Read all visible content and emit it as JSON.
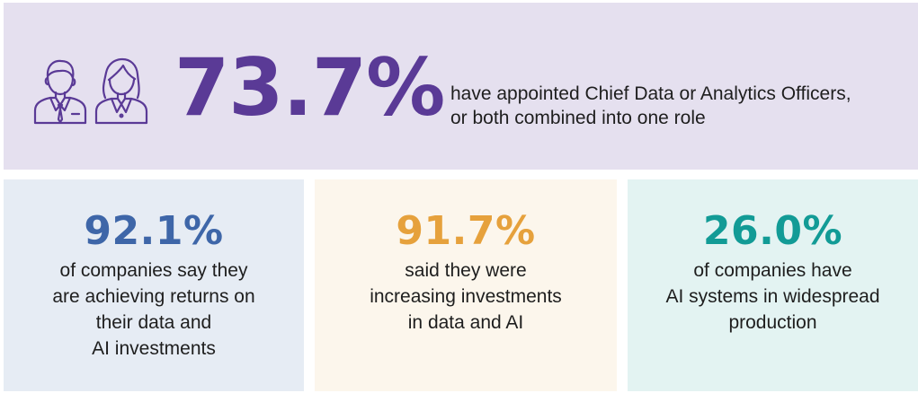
{
  "headline": {
    "value": "73.7%",
    "description_lines": [
      "have appointed Chief Data or Analytics Officers,",
      "or both combined into one role"
    ],
    "icons": [
      "businessman-icon",
      "businesswoman-icon"
    ],
    "color": "#5a3a96",
    "background": "#e5e0ef"
  },
  "stats": [
    {
      "value": "92.1%",
      "lines": [
        "of companies say they",
        "are achieving returns on",
        "their data and",
        "AI investments"
      ],
      "color": "#3e66a8",
      "background": "#e6ecf4"
    },
    {
      "value": "91.7%",
      "lines": [
        "said they were",
        "increasing investments",
        "in data and AI"
      ],
      "color": "#e6a13c",
      "background": "#fcf6ec"
    },
    {
      "value": "26.0%",
      "lines": [
        "of companies have",
        "AI systems in widespread",
        "production"
      ],
      "color": "#129b96",
      "background": "#e3f3f2"
    }
  ]
}
